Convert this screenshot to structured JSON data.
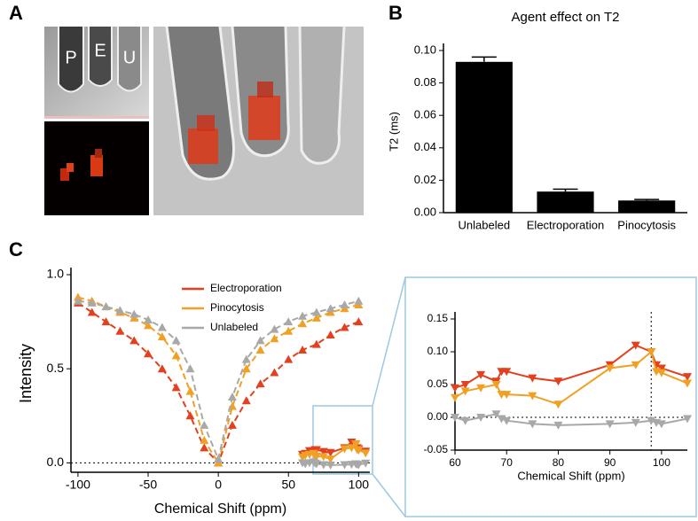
{
  "panel_labels": [
    "A",
    "B",
    "C"
  ],
  "tube_labels": [
    "P",
    "E",
    "U"
  ],
  "chart_data": [
    {
      "type": "bar",
      "title": "Agent effect on T2",
      "y_label": "T2 (ms)",
      "categories": [
        "Unlabeled",
        "Electroporation",
        "Pinocytosis"
      ],
      "values": [
        0.093,
        0.013,
        0.0075
      ],
      "errors": [
        0.003,
        0.0015,
        0.0006
      ],
      "color": "#000000",
      "ylim": [
        0,
        0.1
      ],
      "yticks": [
        {
          "value": 0,
          "label": "0.00"
        },
        {
          "value": 0.02,
          "label": "0.02"
        },
        {
          "value": 0.04,
          "label": "0.04"
        },
        {
          "value": 0.06,
          "label": "0.06"
        },
        {
          "value": 0.08,
          "label": "0.08"
        },
        {
          "value": 0.1,
          "label": "0.10"
        }
      ]
    },
    {
      "type": "line",
      "marker": "triangle-up",
      "line_style": "dashed",
      "zero_line": true,
      "x_label": "Chemical Shift (ppm)",
      "y_label": "Intensity",
      "x": [
        -100,
        -90,
        -80,
        -70,
        -60,
        -50,
        -40,
        -30,
        -20,
        -10,
        0,
        10,
        20,
        30,
        40,
        50,
        60,
        70,
        80,
        90,
        100
      ],
      "series": [
        {
          "name": "Electroporation",
          "color": "#e2401e",
          "values": [
            0.85,
            0.8,
            0.75,
            0.7,
            0.65,
            0.58,
            0.5,
            0.4,
            0.25,
            0.08,
            0.0,
            0.2,
            0.33,
            0.42,
            0.48,
            0.55,
            0.6,
            0.63,
            0.68,
            0.72,
            0.75
          ]
        },
        {
          "name": "Pinocytosis",
          "color": "#f0a024",
          "values": [
            0.88,
            0.86,
            0.83,
            0.8,
            0.77,
            0.73,
            0.67,
            0.57,
            0.38,
            0.12,
            0.0,
            0.3,
            0.5,
            0.6,
            0.66,
            0.7,
            0.74,
            0.77,
            0.8,
            0.82,
            0.84
          ]
        },
        {
          "name": "Unlabeled",
          "color": "#a8a8a8",
          "values": [
            0.86,
            0.85,
            0.83,
            0.81,
            0.79,
            0.76,
            0.72,
            0.65,
            0.5,
            0.2,
            0.02,
            0.35,
            0.55,
            0.65,
            0.71,
            0.75,
            0.78,
            0.8,
            0.82,
            0.84,
            0.86
          ]
        }
      ],
      "xlim": [
        -105,
        108
      ],
      "xticks": [
        -100,
        -50,
        0,
        50,
        100
      ],
      "ylim": [
        -0.05,
        1.0
      ],
      "yticks": [
        {
          "value": 0,
          "label": "0.0"
        },
        {
          "value": 0.5,
          "label": "0.5"
        },
        {
          "value": 1.0,
          "label": "1.0"
        }
      ],
      "legend": "top-center"
    },
    {
      "type": "line",
      "marker": "triangle-down",
      "line_style": "solid",
      "zero_line": true,
      "vline": 98,
      "x_label": "Chemical Shift (ppm)",
      "x": [
        60,
        62,
        65,
        68,
        69,
        70,
        75,
        80,
        90,
        95,
        98,
        99,
        100,
        105
      ],
      "series": [
        {
          "name": "Electroporation",
          "color": "#e2401e",
          "values": [
            0.045,
            0.05,
            0.065,
            0.055,
            0.07,
            0.07,
            0.06,
            0.055,
            0.08,
            0.11,
            0.1,
            0.08,
            0.075,
            0.062
          ]
        },
        {
          "name": "Pinocytosis",
          "color": "#f0a024",
          "values": [
            0.03,
            0.04,
            0.045,
            0.05,
            0.035,
            0.035,
            0.033,
            0.02,
            0.075,
            0.08,
            0.1,
            0.07,
            0.068,
            0.052
          ]
        },
        {
          "name": "Unlabeled",
          "color": "#a8a8a8",
          "values": [
            0.0,
            -0.005,
            0.0,
            0.005,
            -0.002,
            -0.005,
            -0.01,
            -0.012,
            -0.01,
            -0.008,
            -0.005,
            -0.008,
            -0.01,
            -0.002
          ]
        }
      ],
      "xlim": [
        60,
        105
      ],
      "xticks": [
        60,
        70,
        80,
        90,
        100
      ],
      "ylim": [
        -0.05,
        0.15
      ],
      "yticks": [
        {
          "value": -0.05,
          "label": "-0.05"
        },
        {
          "value": 0,
          "label": "0.00"
        },
        {
          "value": 0.05,
          "label": "0.05"
        },
        {
          "value": 0.1,
          "label": "0.10"
        },
        {
          "value": 0.15,
          "label": "0.15"
        }
      ]
    }
  ]
}
